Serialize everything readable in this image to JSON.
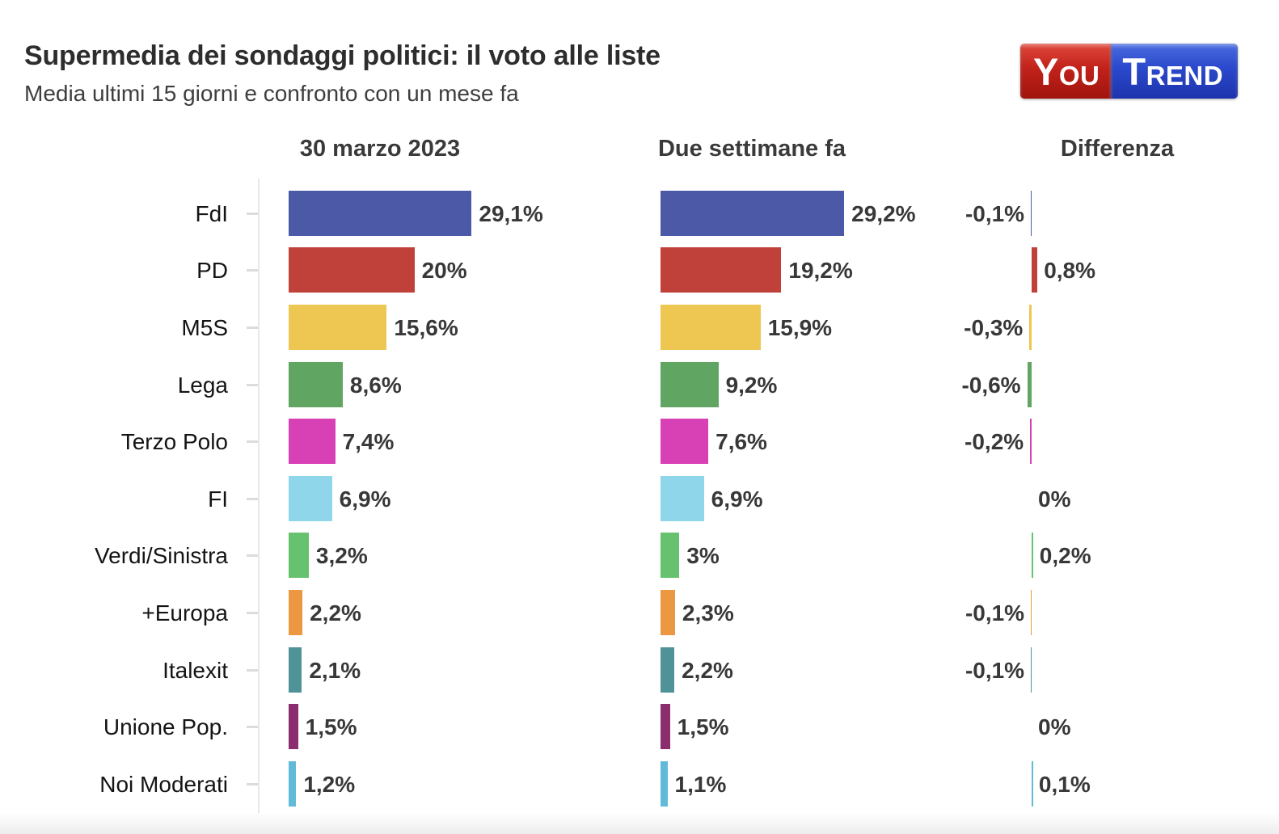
{
  "header": {
    "title": "Supermedia dei sondaggi politici: il voto alle liste",
    "subtitle": "Media ultimi 15 giorni e confronto con un mese fa"
  },
  "logo": {
    "you": "You",
    "trend": "Trend",
    "you_color": "#c2231b",
    "you_gradient_top": "#e0483c",
    "you_gradient_bottom": "#9a110b",
    "trend_color": "#2b49cc",
    "trend_gradient_top": "#4a6ce0",
    "trend_gradient_bottom": "#1b2fa8",
    "text_color": "#ffffff"
  },
  "chart_data": {
    "type": "bar",
    "title": "Supermedia dei sondaggi politici: il voto alle liste",
    "subtitle": "Media ultimi 15 giorni e confronto con un mese fa",
    "columns": [
      "30 marzo 2023",
      "Due settimane fa",
      "Differenza"
    ],
    "unit": "%",
    "xlim": [
      0,
      30
    ],
    "grid": false,
    "legend": "none",
    "axis_color": "#e8e8e8",
    "rows": [
      {
        "party": "FdI",
        "current": 29.1,
        "current_label": "29,1%",
        "previous": 29.2,
        "previous_label": "29,2%",
        "diff": -0.1,
        "diff_label": "-0,1%",
        "color": "#4c59a7"
      },
      {
        "party": "PD",
        "current": 20.0,
        "current_label": "20%",
        "previous": 19.2,
        "previous_label": "19,2%",
        "diff": 0.8,
        "diff_label": "0,8%",
        "color": "#bf4139"
      },
      {
        "party": "M5S",
        "current": 15.6,
        "current_label": "15,6%",
        "previous": 15.9,
        "previous_label": "15,9%",
        "diff": -0.3,
        "diff_label": "-0,3%",
        "color": "#edc751"
      },
      {
        "party": "Lega",
        "current": 8.6,
        "current_label": "8,6%",
        "previous": 9.2,
        "previous_label": "9,2%",
        "diff": -0.6,
        "diff_label": "-0,6%",
        "color": "#61a563"
      },
      {
        "party": "Terzo Polo",
        "current": 7.4,
        "current_label": "7,4%",
        "previous": 7.6,
        "previous_label": "7,6%",
        "diff": -0.2,
        "diff_label": "-0,2%",
        "color": "#d840b6"
      },
      {
        "party": "FI",
        "current": 6.9,
        "current_label": "6,9%",
        "previous": 6.9,
        "previous_label": "6,9%",
        "diff": 0.0,
        "diff_label": "0%",
        "color": "#90d6ea"
      },
      {
        "party": "Verdi/Sinistra",
        "current": 3.2,
        "current_label": "3,2%",
        "previous": 3.0,
        "previous_label": "3%",
        "diff": 0.2,
        "diff_label": "0,2%",
        "color": "#66c26e"
      },
      {
        "party": "+Europa",
        "current": 2.2,
        "current_label": "2,2%",
        "previous": 2.3,
        "previous_label": "2,3%",
        "diff": -0.1,
        "diff_label": "-0,1%",
        "color": "#ec9742"
      },
      {
        "party": "Italexit",
        "current": 2.1,
        "current_label": "2,1%",
        "previous": 2.2,
        "previous_label": "2,2%",
        "diff": -0.1,
        "diff_label": "-0,1%",
        "color": "#4f9298"
      },
      {
        "party": "Unione Pop.",
        "current": 1.5,
        "current_label": "1,5%",
        "previous": 1.5,
        "previous_label": "1,5%",
        "diff": 0.0,
        "diff_label": "0%",
        "color": "#8c2d6f"
      },
      {
        "party": "Noi Moderati",
        "current": 1.2,
        "current_label": "1,2%",
        "previous": 1.1,
        "previous_label": "1,1%",
        "diff": 0.1,
        "diff_label": "0,1%",
        "color": "#62bad9"
      }
    ]
  }
}
